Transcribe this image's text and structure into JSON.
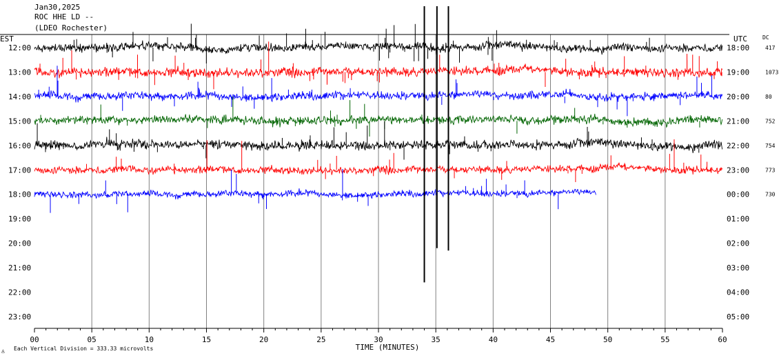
{
  "header": {
    "date": "Jan30,2025",
    "station": "ROC HHE LD --",
    "site": "(LDEO Rochester)"
  },
  "footer": {
    "scale_note": "Each Vertical Division =  333.33 microvolts"
  },
  "chart_data": {
    "type": "line",
    "xlabel": "TIME (MINUTES)",
    "x_ticks": [
      "00",
      "05",
      "10",
      "15",
      "20",
      "25",
      "30",
      "35",
      "40",
      "45",
      "50",
      "55",
      "60"
    ],
    "xlim": [
      0,
      60
    ],
    "left_axis_title": "EST",
    "right_axis_title": "UTC",
    "dc_title": "DC",
    "grid": "vertical lines every 5 minutes",
    "series": [
      {
        "est": "12:00",
        "utc": "18:00",
        "dc": "417",
        "color": "#000000",
        "end_min": 60,
        "amp": 9,
        "spikes": 46
      },
      {
        "est": "13:00",
        "utc": "19:00",
        "dc": "1073",
        "color": "#ff0000",
        "end_min": 60,
        "amp": 10,
        "spikes": 52
      },
      {
        "est": "14:00",
        "utc": "20:00",
        "dc": "80",
        "color": "#0000ff",
        "end_min": 60,
        "amp": 9,
        "spikes": 30
      },
      {
        "est": "15:00",
        "utc": "21:00",
        "dc": "752",
        "color": "#006400",
        "end_min": 60,
        "amp": 9,
        "spikes": 24
      },
      {
        "est": "16:00",
        "utc": "22:00",
        "dc": "754",
        "color": "#000000",
        "end_min": 60,
        "amp": 10,
        "spikes": 36
      },
      {
        "est": "17:00",
        "utc": "23:00",
        "dc": "773",
        "color": "#ff0000",
        "end_min": 60,
        "amp": 8,
        "spikes": 30
      },
      {
        "est": "18:00",
        "utc": "00:00",
        "dc": "730",
        "color": "#0000ff",
        "end_min": 49,
        "amp": 7,
        "spikes": 22
      },
      {
        "est": "19:00",
        "utc": "01:00",
        "dc": "",
        "color": "#000000",
        "end_min": 0,
        "amp": 0,
        "spikes": 0
      },
      {
        "est": "20:00",
        "utc": "02:00",
        "dc": "",
        "color": "#ff0000",
        "end_min": 0,
        "amp": 0,
        "spikes": 0
      },
      {
        "est": "21:00",
        "utc": "03:00",
        "dc": "",
        "color": "#0000ff",
        "end_min": 0,
        "amp": 0,
        "spikes": 0
      },
      {
        "est": "22:00",
        "utc": "04:00",
        "dc": "",
        "color": "#006400",
        "end_min": 0,
        "amp": 0,
        "spikes": 0
      },
      {
        "est": "23:00",
        "utc": "05:00",
        "dc": "",
        "color": "#000000",
        "end_min": 0,
        "amp": 0,
        "spikes": 0
      }
    ],
    "events": [
      {
        "minute": 34.0,
        "top_row": 0,
        "bottom_row": 9.6
      },
      {
        "minute": 35.1,
        "top_row": 0,
        "bottom_row": 8.2
      },
      {
        "minute": 36.1,
        "top_row": 0,
        "bottom_row": 8.3
      }
    ]
  }
}
